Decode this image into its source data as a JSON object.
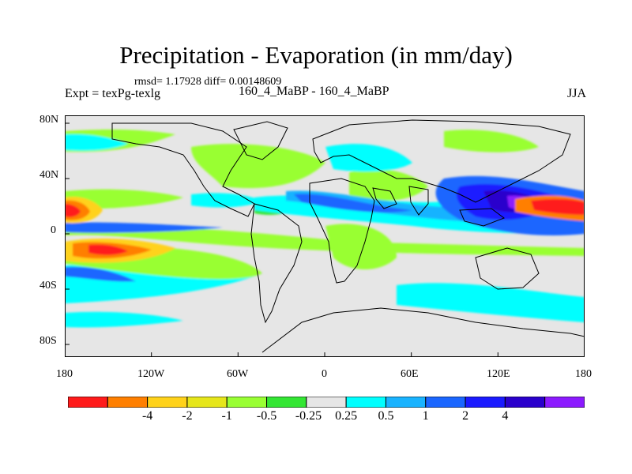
{
  "title": "Precipitation - Evaporation (in mm/day)",
  "stats_line": "rmsd= 1.17928 diff= 0.00148609",
  "experiment": "Expt = texPg-texlg",
  "comparison": "160_4_MaBP - 160_4_MaBP",
  "season": "JJA",
  "map": {
    "background_color": "#e6e6e6",
    "latitude_ticks": [
      "80N",
      "40N",
      "0",
      "40S",
      "80S"
    ],
    "longitude_ticks": [
      "180",
      "120W",
      "60W",
      "0",
      "60E",
      "120E",
      "180"
    ]
  },
  "colorbar": {
    "colors": [
      "#ff1a1a",
      "#ff7f00",
      "#ffd21a",
      "#e6e61a",
      "#99ff33",
      "#33e633",
      "#e6e6e6",
      "#00ffff",
      "#19b3ff",
      "#1a66ff",
      "#1a1aff",
      "#2a00cc",
      "#8c1aff"
    ],
    "labels": [
      "-4",
      "-2",
      "-1",
      "-0.5",
      "-0.25",
      "0.25",
      "0.5",
      "1",
      "2",
      "4"
    ]
  }
}
